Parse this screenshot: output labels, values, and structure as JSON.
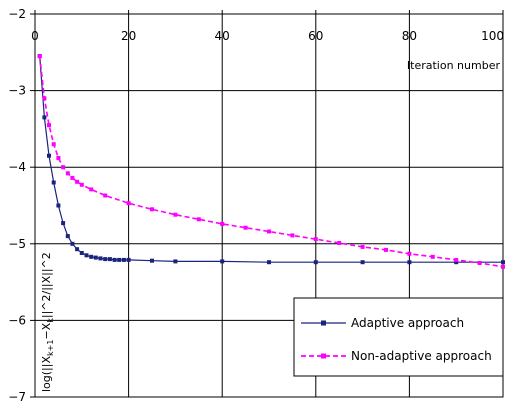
{
  "chart_data": {
    "type": "line",
    "xlabel": "Iteration number",
    "ylabel": "log(||X_{k+1}−X_k||^2/||X||^2)",
    "ylabel_parts": [
      "log(||X",
      "k+1",
      "−X",
      "k",
      "||^2/||X||^2"
    ],
    "xlim": [
      0,
      100
    ],
    "ylim": [
      -7,
      -2
    ],
    "x_axis_position": "top",
    "x_ticks": [
      0,
      20,
      40,
      60,
      80,
      100
    ],
    "y_ticks": [
      -2,
      -3,
      -4,
      -5,
      -6,
      -7
    ],
    "grid": true,
    "legend_position": "bottom-right",
    "series": [
      {
        "name": "Adaptive approach",
        "color": "#1a237e",
        "style": "solid-with-square-markers",
        "x": [
          1,
          2,
          3,
          4,
          5,
          6,
          7,
          8,
          9,
          10,
          11,
          12,
          13,
          14,
          15,
          16,
          17,
          18,
          19,
          20,
          25,
          30,
          40,
          50,
          60,
          70,
          80,
          90,
          100
        ],
        "y": [
          -2.55,
          -3.35,
          -3.85,
          -4.2,
          -4.5,
          -4.73,
          -4.9,
          -5.0,
          -5.07,
          -5.12,
          -5.15,
          -5.17,
          -5.18,
          -5.19,
          -5.2,
          -5.2,
          -5.21,
          -5.21,
          -5.21,
          -5.21,
          -5.22,
          -5.23,
          -5.23,
          -5.24,
          -5.24,
          -5.24,
          -5.24,
          -5.24,
          -5.24
        ]
      },
      {
        "name": "Non-adaptive approach",
        "color": "#ff00ff",
        "style": "dashed-with-square-markers",
        "x": [
          1,
          2,
          3,
          4,
          5,
          6,
          7,
          8,
          9,
          10,
          12,
          15,
          20,
          25,
          30,
          35,
          40,
          45,
          50,
          55,
          60,
          65,
          70,
          75,
          80,
          85,
          90,
          95,
          100
        ],
        "y": [
          -2.55,
          -3.1,
          -3.45,
          -3.7,
          -3.88,
          -4.0,
          -4.08,
          -4.14,
          -4.19,
          -4.23,
          -4.29,
          -4.37,
          -4.47,
          -4.55,
          -4.62,
          -4.68,
          -4.74,
          -4.79,
          -4.84,
          -4.89,
          -4.94,
          -4.99,
          -5.04,
          -5.08,
          -5.13,
          -5.17,
          -5.21,
          -5.25,
          -5.3
        ]
      }
    ]
  }
}
